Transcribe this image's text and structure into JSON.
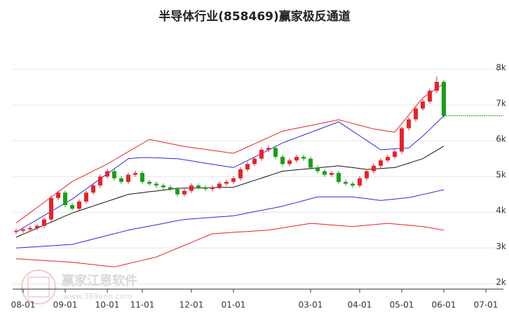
{
  "chart_data": {
    "type": "candlestick",
    "title": "半导体行业(858469)赢家极反通道",
    "watermark": "赢家江恩软件",
    "watermark_url": "www.369enn.com",
    "categories": [
      null,
      "08-01",
      null,
      null,
      null,
      null,
      null,
      "09-01",
      null,
      null,
      null,
      null,
      null,
      "10-01",
      null,
      null,
      null,
      null,
      "11-01",
      null,
      null,
      null,
      null,
      null,
      null,
      "12-01",
      null,
      null,
      null,
      null,
      null,
      "01-01",
      null,
      null,
      null,
      null,
      null,
      null,
      null,
      null,
      null,
      null,
      "03-01",
      null,
      null,
      null,
      null,
      null,
      null,
      "04-01",
      null,
      null,
      null,
      null,
      null,
      "05-01",
      null,
      null,
      null,
      null,
      null,
      "06-01",
      null,
      null,
      null,
      null,
      null,
      "07-01",
      null,
      null
    ],
    "open": [
      3450,
      3480,
      3520,
      3560,
      3620,
      3800,
      4400,
      4550,
      4200,
      4100,
      4300,
      4550,
      4750,
      5000,
      5150,
      4950,
      4850,
      5050,
      5100,
      4850,
      4800,
      4750,
      4700,
      4650,
      4500,
      4600,
      4750,
      4700,
      4650,
      4700,
      4800,
      4850,
      4950,
      5200,
      5350,
      5500,
      5750,
      5800,
      5550,
      5350,
      5450,
      5550,
      5500,
      5250,
      5150,
      5050,
      5100,
      4850,
      4800,
      4750,
      4950,
      5150,
      5300,
      5450,
      5550,
      5700,
      6350,
      6600,
      6900,
      7100,
      7400,
      7650,
      null,
      null,
      null,
      null,
      null,
      null,
      null,
      null
    ],
    "high": [
      3540,
      3580,
      3620,
      3680,
      3860,
      4460,
      4610,
      4610,
      4260,
      4360,
      4610,
      4810,
      5060,
      5210,
      5210,
      5010,
      5110,
      5160,
      5160,
      4910,
      4860,
      4810,
      4760,
      4710,
      4660,
      4810,
      4810,
      4760,
      4760,
      4860,
      4910,
      5010,
      5260,
      5410,
      5560,
      5810,
      5860,
      5860,
      5610,
      5510,
      5610,
      5610,
      5560,
      5310,
      5210,
      5160,
      5160,
      4910,
      4860,
      5010,
      5210,
      5360,
      5510,
      5610,
      5760,
      6410,
      6660,
      6960,
      7160,
      7460,
      7800,
      7710,
      null,
      null,
      null,
      null,
      null,
      null,
      null,
      null
    ],
    "low": [
      3390,
      3420,
      3460,
      3500,
      3560,
      3740,
      4340,
      4140,
      4040,
      4040,
      4240,
      4490,
      4690,
      4940,
      4890,
      4790,
      4790,
      4990,
      4790,
      4740,
      4690,
      4640,
      4590,
      4440,
      4440,
      4540,
      4640,
      4590,
      4590,
      4640,
      4740,
      4790,
      4890,
      5140,
      5290,
      5440,
      5690,
      5490,
      5290,
      5290,
      5390,
      5440,
      5190,
      5090,
      4990,
      4990,
      4790,
      4740,
      4690,
      4690,
      4890,
      5090,
      5240,
      5390,
      5490,
      5640,
      6290,
      6540,
      6840,
      7040,
      7340,
      6640,
      null,
      null,
      null,
      null,
      null,
      null,
      null,
      null
    ],
    "close": [
      3480,
      3520,
      3560,
      3620,
      3800,
      4400,
      4550,
      4200,
      4100,
      4300,
      4550,
      4750,
      5000,
      5150,
      4950,
      4850,
      5050,
      5100,
      4850,
      4800,
      4750,
      4700,
      4650,
      4500,
      4600,
      4750,
      4700,
      4650,
      4700,
      4800,
      4850,
      4950,
      5200,
      5350,
      5500,
      5750,
      5800,
      5550,
      5350,
      5450,
      5550,
      5500,
      5250,
      5150,
      5050,
      5100,
      4850,
      4800,
      4750,
      4950,
      5150,
      5300,
      5450,
      5550,
      5700,
      6350,
      6600,
      6900,
      7100,
      7400,
      7650,
      6700,
      null,
      null,
      null,
      null,
      null,
      null,
      null,
      null
    ],
    "up_color": "#e8222a",
    "down_color": "#17a117",
    "last_color": "#17a117",
    "series": [
      {
        "color": "#e8222a",
        "values": [
          3700,
          3845,
          3990,
          4135,
          4280,
          4425,
          4570,
          4715,
          4860,
          4958,
          5056,
          5154,
          5252,
          5350,
          5465,
          5580,
          5695,
          5810,
          5925,
          6040,
          6000,
          5960,
          5920,
          5880,
          5840,
          5813,
          5786,
          5759,
          5731,
          5704,
          5677,
          5650,
          5739,
          5827,
          5916,
          6004,
          6093,
          6181,
          6270,
          6310,
          6350,
          6390,
          6430,
          6470,
          6510,
          6550,
          6590,
          6538,
          6486,
          6434,
          6382,
          6330,
          6300,
          6270,
          6240,
          6480,
          6720,
          6960,
          7200,
          7333,
          7467,
          7600,
          null,
          null,
          null,
          null,
          null,
          null,
          null,
          null
        ]
      },
      {
        "color": "#2a2ae0",
        "values": [
          3450,
          3565,
          3680,
          3795,
          3910,
          4025,
          4140,
          4255,
          4370,
          4511,
          4653,
          4794,
          4935,
          5076,
          5218,
          5359,
          5500,
          5520,
          5530,
          5530,
          5525,
          5515,
          5505,
          5500,
          5469,
          5438,
          5406,
          5375,
          5344,
          5313,
          5281,
          5250,
          5349,
          5447,
          5546,
          5644,
          5743,
          5841,
          5940,
          6014,
          6087,
          6161,
          6235,
          6309,
          6383,
          6456,
          6530,
          6400,
          6270,
          6140,
          6010,
          5880,
          5750,
          5763,
          5775,
          5788,
          5800,
          5965,
          6130,
          6320,
          6510,
          6700,
          null,
          null,
          null,
          null,
          null,
          null,
          null,
          null
        ]
      },
      {
        "color": "#111111",
        "values": [
          3300,
          3385,
          3470,
          3555,
          3640,
          3725,
          3810,
          3895,
          3980,
          4045,
          4110,
          4175,
          4240,
          4305,
          4370,
          4435,
          4500,
          4525,
          4550,
          4575,
          4595,
          4620,
          4645,
          4670,
          4674,
          4678,
          4682,
          4686,
          4690,
          4694,
          4697,
          4700,
          4764,
          4829,
          4893,
          4957,
          5021,
          5086,
          5150,
          5169,
          5188,
          5206,
          5225,
          5244,
          5263,
          5281,
          5300,
          5275,
          5250,
          5225,
          5200,
          5212,
          5225,
          5238,
          5250,
          5312,
          5375,
          5438,
          5500,
          5617,
          5733,
          5850,
          null,
          null,
          null,
          null,
          null,
          null,
          null,
          null
        ]
      },
      {
        "color": "#2a2ae0",
        "values": [
          3000,
          3013,
          3025,
          3038,
          3050,
          3063,
          3075,
          3088,
          3100,
          3150,
          3200,
          3250,
          3300,
          3350,
          3400,
          3450,
          3500,
          3538,
          3575,
          3613,
          3650,
          3688,
          3725,
          3763,
          3800,
          3814,
          3829,
          3843,
          3857,
          3871,
          3886,
          3900,
          3939,
          3977,
          4016,
          4054,
          4093,
          4131,
          4170,
          4222,
          4274,
          4326,
          4378,
          4430,
          4430,
          4430,
          4430,
          4430,
          4430,
          4405,
          4380,
          4355,
          4330,
          4350,
          4370,
          4390,
          4410,
          4454,
          4498,
          4542,
          4586,
          4630,
          null,
          null,
          null,
          null,
          null,
          null,
          null,
          null
        ]
      },
      {
        "color": "#e8222a",
        "values": [
          2700,
          2688,
          2675,
          2663,
          2650,
          2638,
          2625,
          2613,
          2600,
          2578,
          2557,
          2535,
          2513,
          2492,
          2470,
          2517,
          2563,
          2610,
          2657,
          2703,
          2750,
          2831,
          2913,
          2994,
          3075,
          3156,
          3238,
          3319,
          3400,
          3413,
          3425,
          3438,
          3450,
          3463,
          3475,
          3488,
          3500,
          3532,
          3563,
          3595,
          3627,
          3658,
          3690,
          3675,
          3660,
          3645,
          3630,
          3615,
          3600,
          3618,
          3636,
          3654,
          3672,
          3690,
          3672,
          3654,
          3636,
          3618,
          3600,
          3567,
          3533,
          3500,
          null,
          null,
          null,
          null,
          null,
          null,
          null,
          null
        ]
      }
    ],
    "ylim": [
      1850,
      9000
    ],
    "yticks": [
      {
        "value": 2000,
        "label": "2k"
      },
      {
        "value": 3000,
        "label": "3k"
      },
      {
        "value": 4000,
        "label": "4k"
      },
      {
        "value": 5000,
        "label": "5k"
      },
      {
        "value": 6000,
        "label": "6k"
      },
      {
        "value": 7000,
        "label": "7k"
      },
      {
        "value": 8000,
        "label": "8k"
      }
    ],
    "grid": true
  }
}
